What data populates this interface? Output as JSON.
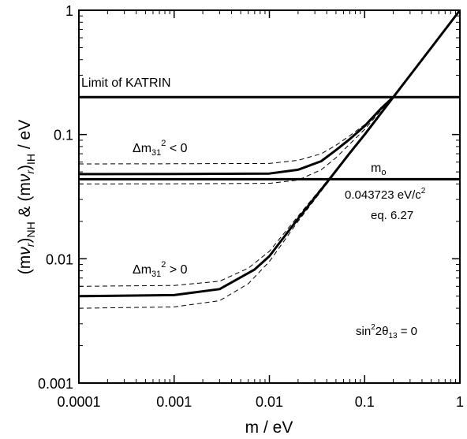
{
  "chart_data": {
    "type": "line",
    "xscale": "log",
    "yscale": "log",
    "xlim": [
      0.0001,
      1
    ],
    "ylim": [
      0.001,
      1
    ],
    "xlabel": "m / eV",
    "ylabel_parts": [
      "(m",
      "ν",
      "r",
      ")",
      "NH",
      " & (m",
      "ν",
      "r",
      ")",
      "IH",
      " / eV"
    ],
    "xticks": [
      {
        "value": 0.0001,
        "label": "0.0001"
      },
      {
        "value": 0.001,
        "label": "0.001"
      },
      {
        "value": 0.01,
        "label": "0.01"
      },
      {
        "value": 0.1,
        "label": "0.1"
      },
      {
        "value": 1,
        "label": "1"
      }
    ],
    "yticks": [
      {
        "value": 0.001,
        "label": "0.001"
      },
      {
        "value": 0.01,
        "label": "0.01"
      },
      {
        "value": 0.1,
        "label": "0.1"
      },
      {
        "value": 1,
        "label": "1"
      }
    ],
    "grid": false,
    "series": [
      {
        "style": "thick",
        "x": [
          0.0001,
          0.001,
          0.003,
          0.007,
          0.01,
          0.02,
          0.04,
          0.07,
          0.1,
          0.2,
          0.5,
          1
        ],
        "y": [
          0.005,
          0.0051,
          0.0057,
          0.0082,
          0.0105,
          0.021,
          0.041,
          0.071,
          0.1,
          0.2,
          0.5,
          1
        ]
      },
      {
        "style": "dashed",
        "x": [
          0.0001,
          0.001,
          0.003,
          0.006,
          0.01,
          0.02,
          0.04,
          0.07,
          0.1,
          0.2
        ],
        "y": [
          0.006,
          0.0061,
          0.0066,
          0.0084,
          0.0115,
          0.022,
          0.042,
          0.072,
          0.101,
          0.2
        ]
      },
      {
        "style": "dashed",
        "x": [
          0.0001,
          0.001,
          0.003,
          0.006,
          0.01,
          0.02,
          0.04,
          0.07,
          0.1,
          0.2
        ],
        "y": [
          0.004,
          0.0041,
          0.0046,
          0.0063,
          0.0095,
          0.02,
          0.04,
          0.07,
          0.1,
          0.2
        ]
      },
      {
        "style": "thick",
        "x": [
          0.0001,
          0.001,
          0.01,
          0.02,
          0.035,
          0.05,
          0.07,
          0.1,
          0.15,
          0.2
        ],
        "y": [
          0.048,
          0.0481,
          0.0485,
          0.052,
          0.061,
          0.075,
          0.092,
          0.117,
          0.163,
          0.2
        ]
      },
      {
        "style": "dashed",
        "x": [
          0.0001,
          0.001,
          0.01,
          0.02,
          0.035,
          0.05,
          0.07,
          0.1,
          0.15,
          0.2
        ],
        "y": [
          0.058,
          0.0581,
          0.0585,
          0.062,
          0.07,
          0.082,
          0.098,
          0.12,
          0.165,
          0.2
        ]
      },
      {
        "style": "dashed",
        "x": [
          0.0001,
          0.001,
          0.01,
          0.02,
          0.035,
          0.05,
          0.07,
          0.1,
          0.15,
          0.2
        ],
        "y": [
          0.04,
          0.0401,
          0.0405,
          0.043,
          0.052,
          0.065,
          0.084,
          0.11,
          0.158,
          0.2
        ]
      }
    ],
    "hlines": [
      {
        "name": "katrin",
        "y": 0.2,
        "label": "Limit of KATRIN"
      },
      {
        "name": "m0",
        "y": 0.043723
      }
    ],
    "annotations": {
      "dm_ih": {
        "base": "Δm",
        "sub": "31",
        "sup": "2",
        "tail": " < 0"
      },
      "dm_nh": {
        "base": "Δm",
        "sub": "31",
        "sup": "2",
        "tail": " > 0"
      },
      "m0_label": {
        "base": "m",
        "sub": "o"
      },
      "m0_value": {
        "text": "0.043723 eV/c",
        "sup": "2"
      },
      "eq_ref": "eq. 6.27",
      "theta": {
        "pre": "sin",
        "sup": "2",
        "mid": "2θ",
        "sub": "13",
        "tail": " = 0"
      }
    }
  }
}
